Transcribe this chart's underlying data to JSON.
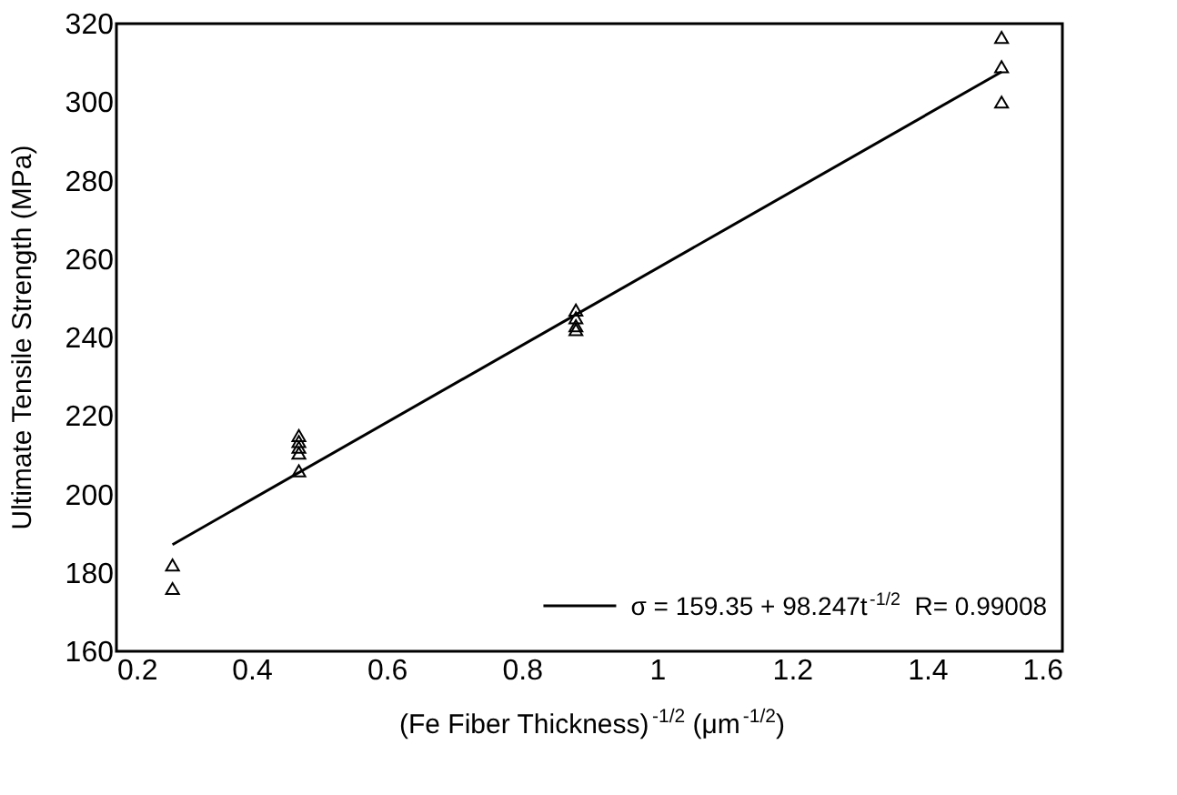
{
  "chart_data": {
    "type": "scatter",
    "xlabel": "(Fe Fiber Thickness)$^{-1/2}$ (μm$^{-1/2}$)",
    "ylabel": "Ultimate Tensile Strength (MPa)",
    "xlim": [
      0.2,
      1.6
    ],
    "xticks": [
      0.2,
      0.4,
      0.6,
      0.8,
      1,
      1.2,
      1.4,
      1.6
    ],
    "ylim": [
      160,
      320
    ],
    "yticks": [
      160,
      180,
      200,
      220,
      240,
      260,
      280,
      300,
      320
    ],
    "grid": false,
    "legend": "bottom right",
    "series": [
      {
        "marker": "triangle",
        "color": "#000000",
        "x": [
          0.283,
          0.283,
          0.47,
          0.47,
          0.47,
          0.47,
          0.47,
          0.88,
          0.88,
          0.88,
          0.88,
          1.51,
          1.51,
          1.51
        ],
        "values": [
          182,
          176,
          215,
          213.5,
          212,
          210.5,
          206,
          247,
          245,
          243,
          242,
          316.5,
          309,
          300
        ]
      },
      {
        "type": "line",
        "name": "σ = 159.35 + 98.247t$^{-1/2}$  R= 0.99008",
        "color": "#000000",
        "line_style": "solid",
        "x": [
          0.283,
          1.51
        ],
        "values": [
          187.2,
          307.7
        ]
      }
    ]
  }
}
